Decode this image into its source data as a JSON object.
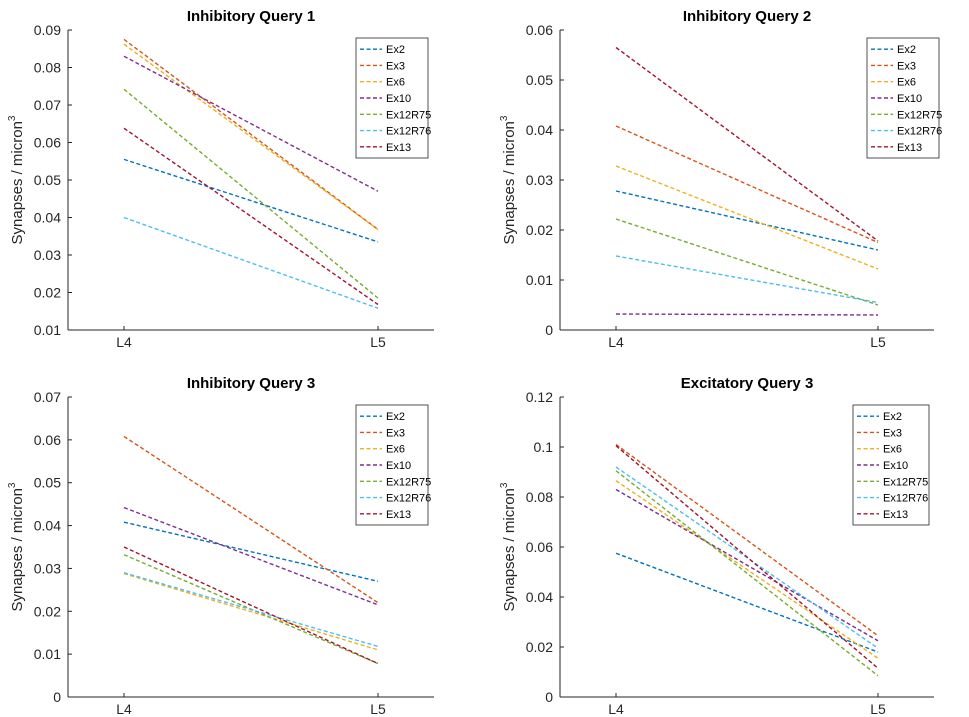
{
  "chart_data": [
    {
      "type": "line",
      "title": "Inhibitory Query 1",
      "xlabel": "",
      "ylabel": "Synapses / micron",
      "ylabel_superscript": "3",
      "categories": [
        "L4",
        "L5"
      ],
      "ylim": [
        0.01,
        0.09
      ],
      "yticks": [
        0.01,
        0.02,
        0.03,
        0.04,
        0.05,
        0.06,
        0.07,
        0.08,
        0.09
      ],
      "ytick_labels": [
        "0.01",
        "0.02",
        "0.03",
        "0.04",
        "0.05",
        "0.06",
        "0.07",
        "0.08",
        "0.09"
      ],
      "grid": false,
      "legend_position": "top-right",
      "series": [
        {
          "name": "Ex2",
          "values": [
            0.0555,
            0.0335
          ]
        },
        {
          "name": "Ex3",
          "values": [
            0.0875,
            0.0368
          ]
        },
        {
          "name": "Ex6",
          "values": [
            0.0862,
            0.0368
          ]
        },
        {
          "name": "Ex10",
          "values": [
            0.083,
            0.047
          ]
        },
        {
          "name": "Ex12R75",
          "values": [
            0.0742,
            0.0185
          ]
        },
        {
          "name": "Ex12R76",
          "values": [
            0.04,
            0.0158
          ]
        },
        {
          "name": "Ex13",
          "values": [
            0.0638,
            0.0168
          ]
        }
      ]
    },
    {
      "type": "line",
      "title": "Inhibitory Query 2",
      "xlabel": "",
      "ylabel": "Synapses / micron",
      "ylabel_superscript": "3",
      "categories": [
        "L4",
        "L5"
      ],
      "ylim": [
        0,
        0.06
      ],
      "yticks": [
        0,
        0.01,
        0.02,
        0.03,
        0.04,
        0.05,
        0.06
      ],
      "ytick_labels": [
        "0",
        "0.01",
        "0.02",
        "0.03",
        "0.04",
        "0.05",
        "0.06"
      ],
      "grid": false,
      "legend_position": "top-right",
      "series": [
        {
          "name": "Ex2",
          "values": [
            0.0278,
            0.016
          ]
        },
        {
          "name": "Ex3",
          "values": [
            0.0408,
            0.0175
          ]
        },
        {
          "name": "Ex6",
          "values": [
            0.0328,
            0.0122
          ]
        },
        {
          "name": "Ex10",
          "values": [
            0.0032,
            0.003
          ]
        },
        {
          "name": "Ex12R75",
          "values": [
            0.0222,
            0.005
          ]
        },
        {
          "name": "Ex12R76",
          "values": [
            0.0148,
            0.0055
          ]
        },
        {
          "name": "Ex13",
          "values": [
            0.0565,
            0.0178
          ]
        }
      ]
    },
    {
      "type": "line",
      "title": "Inhibitory Query 3",
      "xlabel": "",
      "ylabel": "Synapses / micron",
      "ylabel_superscript": "3",
      "categories": [
        "L4",
        "L5"
      ],
      "ylim": [
        0,
        0.07
      ],
      "yticks": [
        0,
        0.01,
        0.02,
        0.03,
        0.04,
        0.05,
        0.06,
        0.07
      ],
      "ytick_labels": [
        "0",
        "0.01",
        "0.02",
        "0.03",
        "0.04",
        "0.05",
        "0.06",
        "0.07"
      ],
      "grid": false,
      "legend_position": "top-right",
      "series": [
        {
          "name": "Ex2",
          "values": [
            0.0408,
            0.027
          ]
        },
        {
          "name": "Ex3",
          "values": [
            0.0608,
            0.022
          ]
        },
        {
          "name": "Ex6",
          "values": [
            0.0288,
            0.011
          ]
        },
        {
          "name": "Ex10",
          "values": [
            0.0442,
            0.0215
          ]
        },
        {
          "name": "Ex12R75",
          "values": [
            0.0332,
            0.0078
          ]
        },
        {
          "name": "Ex12R76",
          "values": [
            0.029,
            0.0118
          ]
        },
        {
          "name": "Ex13",
          "values": [
            0.035,
            0.0078
          ]
        }
      ]
    },
    {
      "type": "line",
      "title": "Excitatory Query 3",
      "xlabel": "",
      "ylabel": "Synapses / micron",
      "ylabel_superscript": "3",
      "categories": [
        "L4",
        "L5"
      ],
      "ylim": [
        0,
        0.12
      ],
      "yticks": [
        0,
        0.02,
        0.04,
        0.06,
        0.08,
        0.1,
        0.12
      ],
      "ytick_labels": [
        "0",
        "0.02",
        "0.04",
        "0.06",
        "0.08",
        "0.1",
        "0.12"
      ],
      "grid": false,
      "legend_position": "top-right",
      "series": [
        {
          "name": "Ex2",
          "values": [
            0.0575,
            0.018
          ]
        },
        {
          "name": "Ex3",
          "values": [
            0.101,
            0.0245
          ]
        },
        {
          "name": "Ex6",
          "values": [
            0.0865,
            0.0155
          ]
        },
        {
          "name": "Ex10",
          "values": [
            0.083,
            0.0225
          ]
        },
        {
          "name": "Ex12R75",
          "values": [
            0.0905,
            0.0085
          ]
        },
        {
          "name": "Ex12R76",
          "values": [
            0.092,
            0.0195
          ]
        },
        {
          "name": "Ex13",
          "values": [
            0.1005,
            0.0115
          ]
        }
      ]
    }
  ],
  "series_colors": {
    "Ex2": "#0072BD",
    "Ex3": "#D95319",
    "Ex6": "#EDB120",
    "Ex10": "#7E2F8E",
    "Ex12R75": "#77AC30",
    "Ex12R76": "#4DBEEE",
    "Ex13": "#A2142F"
  }
}
